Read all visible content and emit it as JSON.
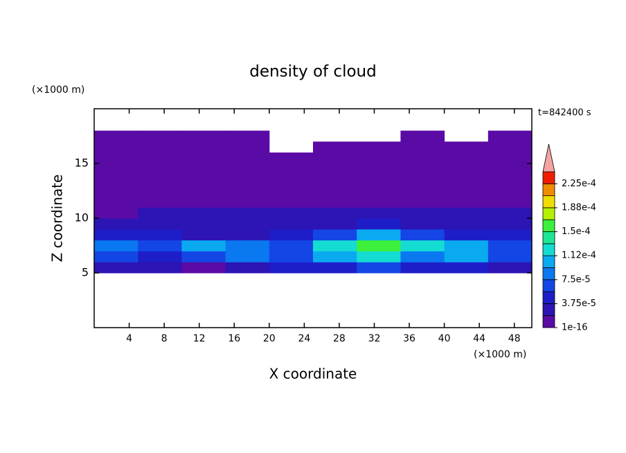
{
  "chart_data": {
    "type": "contour",
    "title": "density of cloud",
    "x_label": "X coordinate",
    "y_label": "Z coordinate",
    "x_unit": "(×1000 m)",
    "y_unit": "(×1000 m)",
    "annotation": "t=842400 s",
    "x": [
      2.5,
      7.5,
      12.5,
      17.5,
      22.5,
      27.5,
      32.5,
      37.5,
      42.5,
      47.5
    ],
    "y": [
      5.5,
      6.5,
      7.5,
      8.5,
      9.5,
      10.5,
      11.5,
      12.5,
      13.5,
      14.5,
      15.5,
      16.5,
      17.5
    ],
    "values": [
      [
        3e-05,
        2e-05,
        1e-05,
        3e-05,
        4e-05,
        5e-05,
        6e-05,
        5e-05,
        4e-05,
        2e-05
      ],
      [
        7e-05,
        5e-05,
        6e-05,
        8e-05,
        7e-05,
        0.0001,
        0.00012,
        8e-05,
        0.00011,
        6e-05
      ],
      [
        8e-05,
        6e-05,
        0.0001,
        9e-05,
        7e-05,
        0.00013,
        0.00016,
        0.00012,
        0.0001,
        7e-05
      ],
      [
        4e-05,
        5e-05,
        3e-05,
        3e-05,
        4e-05,
        7e-05,
        0.00011,
        6e-05,
        4e-05,
        4e-05
      ],
      [
        2e-05,
        2.5e-05,
        2e-05,
        2e-05,
        2.5e-05,
        3e-05,
        5e-05,
        3e-05,
        2.5e-05,
        2.5e-05
      ],
      [
        1.5e-05,
        2e-05,
        2e-05,
        2e-05,
        2e-05,
        2e-05,
        2.5e-05,
        2e-05,
        2e-05,
        2e-05
      ],
      [
        1e-05,
        1.5e-05,
        1e-05,
        1e-05,
        1e-05,
        1e-05,
        1.5e-05,
        1e-05,
        1.5e-05,
        1e-05
      ],
      [
        1e-05,
        1e-05,
        1e-05,
        1e-05,
        1e-05,
        1e-05,
        1e-05,
        1e-05,
        1e-05,
        1e-05
      ],
      [
        8e-06,
        8e-06,
        8e-06,
        8e-06,
        8e-06,
        8e-06,
        8e-06,
        8e-06,
        8e-06,
        8e-06
      ],
      [
        5e-06,
        5e-06,
        5e-06,
        5e-06,
        5e-06,
        5e-06,
        5e-06,
        5e-06,
        5e-06,
        5e-06
      ],
      [
        5e-06,
        5e-06,
        5e-06,
        5e-06,
        5e-06,
        5e-06,
        5e-06,
        5e-06,
        5e-06,
        5e-06
      ],
      [
        5e-06,
        5e-06,
        5e-06,
        5e-06,
        null,
        5e-06,
        5e-06,
        5e-06,
        5e-06,
        5e-06
      ],
      [
        5e-06,
        5e-06,
        5e-06,
        5e-06,
        null,
        null,
        null,
        5e-06,
        null,
        5e-06
      ]
    ],
    "xlim": [
      0,
      50
    ],
    "ylim": [
      0,
      20
    ],
    "xticks": [
      4,
      8,
      12,
      16,
      20,
      24,
      28,
      32,
      36,
      40,
      44,
      48
    ],
    "yticks": [
      5,
      10,
      15
    ],
    "levels": [
      1e-16,
      1.875e-05,
      3.75e-05,
      5.625e-05,
      7.5e-05,
      9.375e-05,
      0.0001125,
      0.00013125,
      0.00015,
      0.00016875,
      0.0001875,
      0.00020625,
      0.000225,
      0.00024375
    ],
    "colors": [
      "#5a0aa5",
      "#2d14b4",
      "#1e1ec8",
      "#1446e6",
      "#0a78f0",
      "#0aaaf0",
      "#14dcd2",
      "#1ee696",
      "#3cf03c",
      "#b4f000",
      "#f0dc00",
      "#f08c00",
      "#f01e00"
    ],
    "extend_color": "#f4a4a4",
    "colorbar_ticks": [
      {
        "value": 1e-16,
        "label": "1e-16"
      },
      {
        "value": 3.75e-05,
        "label": "3.75e-5"
      },
      {
        "value": 7.5e-05,
        "label": "7.5e-5"
      },
      {
        "value": 0.0001125,
        "label": "1.12e-4"
      },
      {
        "value": 0.00015,
        "label": "1.5e-4"
      },
      {
        "value": 0.0001875,
        "label": "1.88e-4"
      },
      {
        "value": 0.000225,
        "label": "2.25e-4"
      }
    ]
  }
}
